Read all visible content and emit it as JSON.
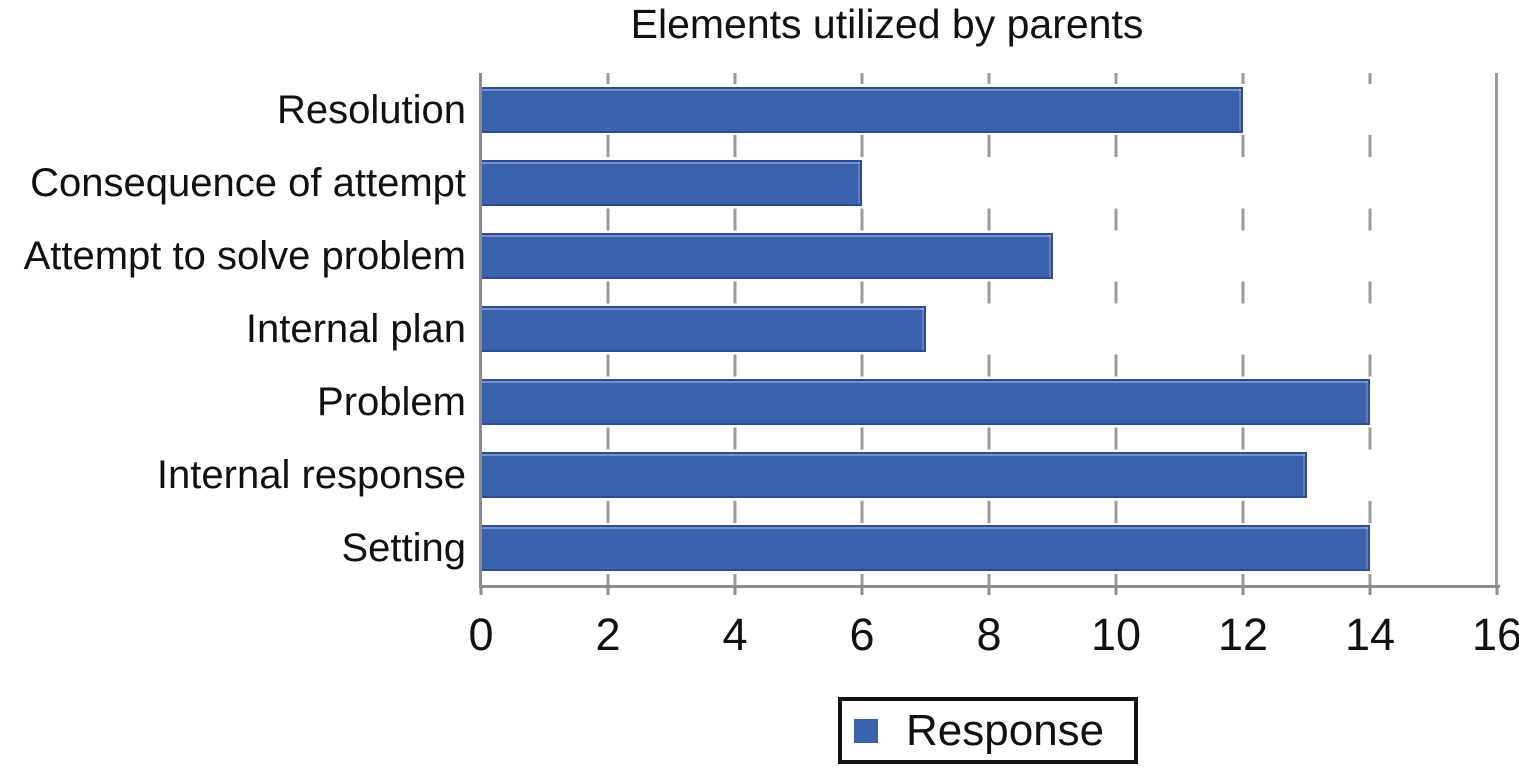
{
  "chart_data": {
    "type": "bar",
    "orientation": "horizontal",
    "title": "Elements utilized by parents",
    "categories": [
      "Resolution",
      "Consequence of attempt",
      "Attempt to solve problem",
      "Internal plan",
      "Problem",
      "Internal response",
      "Setting"
    ],
    "series": [
      {
        "name": "Response",
        "values": [
          12,
          6,
          9,
          7,
          14,
          13,
          14
        ]
      }
    ],
    "xlabel": "",
    "ylabel": "",
    "xlim": [
      0,
      16
    ],
    "xticks": [
      0,
      2,
      4,
      6,
      8,
      10,
      12,
      14,
      16
    ],
    "grid": "dashed-vertical",
    "legend_position": "bottom-center",
    "colors": {
      "bar_fill": "#3a62ac",
      "bar_border": "#2b4e9a",
      "gridline": "#9a9a9a",
      "axis": "#8c8c8c",
      "plot_border": "#9a9a9a",
      "text": "#111111",
      "legend_border": "#111111"
    }
  }
}
